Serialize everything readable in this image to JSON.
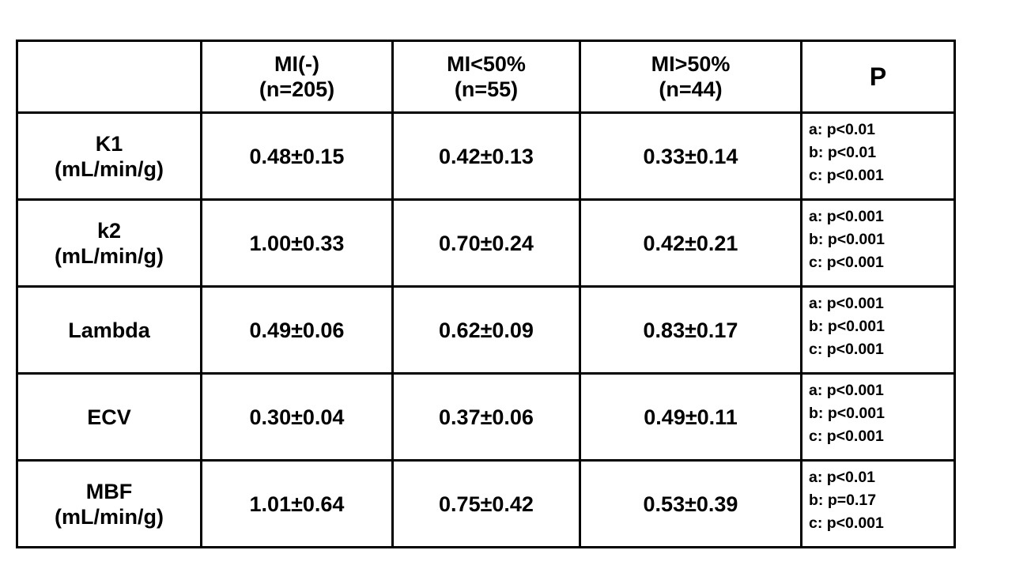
{
  "header": {
    "corner": "",
    "columns": [
      {
        "line1": "MI(-)",
        "line2": "(n=205)"
      },
      {
        "line1": "MI<50%",
        "line2": "(n=55)"
      },
      {
        "line1": "MI>50%",
        "line2": "(n=44)"
      }
    ],
    "p_label": "P"
  },
  "rows": [
    {
      "label1": "K1",
      "label2": "(mL/min/g)",
      "values": [
        "0.48±0.15",
        "0.42±0.13",
        "0.33±0.14"
      ],
      "p": [
        "a: p<0.01",
        "b: p<0.01",
        "c: p<0.001"
      ]
    },
    {
      "label1": "k2",
      "label2": "(mL/min/g)",
      "values": [
        "1.00±0.33",
        "0.70±0.24",
        "0.42±0.21"
      ],
      "p": [
        "a: p<0.001",
        "b: p<0.001",
        "c: p<0.001"
      ]
    },
    {
      "label1": "Lambda",
      "label2": "",
      "values": [
        "0.49±0.06",
        "0.62±0.09",
        "0.83±0.17"
      ],
      "p": [
        "a: p<0.001",
        "b: p<0.001",
        "c: p<0.001"
      ]
    },
    {
      "label1": "ECV",
      "label2": "",
      "values": [
        "0.30±0.04",
        "0.37±0.06",
        "0.49±0.11"
      ],
      "p": [
        "a: p<0.001",
        "b: p<0.001",
        "c: p<0.001"
      ]
    },
    {
      "label1": "MBF",
      "label2": "(mL/min/g)",
      "values": [
        "1.01±0.64",
        "0.75±0.42",
        "0.53±0.39"
      ],
      "p": [
        "a: p<0.01",
        "b: p=0.17",
        "c: p<0.001"
      ]
    }
  ]
}
